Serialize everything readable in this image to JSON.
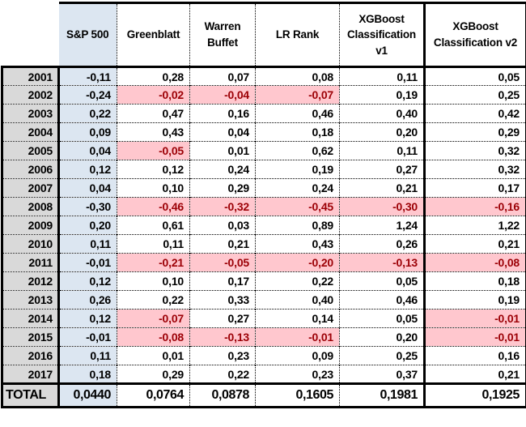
{
  "table": {
    "columns": [
      {
        "label": ""
      },
      {
        "label": "S&P 500"
      },
      {
        "label": "Greenblatt"
      },
      {
        "label": "Warren Buffet"
      },
      {
        "label": "LR Rank"
      },
      {
        "label": "XGBoost Classification v1"
      },
      {
        "label": "XGBoost Classification v2"
      }
    ],
    "rows": [
      {
        "year": "2001",
        "values": [
          "-0,11",
          "0,28",
          "0,07",
          "0,08",
          "0,11",
          "0,05"
        ]
      },
      {
        "year": "2002",
        "values": [
          "-0,24",
          "-0,02",
          "-0,04",
          "-0,07",
          "0,19",
          "0,25"
        ]
      },
      {
        "year": "2003",
        "values": [
          "0,22",
          "0,47",
          "0,16",
          "0,46",
          "0,40",
          "0,42"
        ]
      },
      {
        "year": "2004",
        "values": [
          "0,09",
          "0,43",
          "0,04",
          "0,18",
          "0,20",
          "0,29"
        ]
      },
      {
        "year": "2005",
        "values": [
          "0,04",
          "-0,05",
          "0,01",
          "0,62",
          "0,11",
          "0,32"
        ]
      },
      {
        "year": "2006",
        "values": [
          "0,12",
          "0,12",
          "0,24",
          "0,19",
          "0,27",
          "0,32"
        ]
      },
      {
        "year": "2007",
        "values": [
          "0,04",
          "0,10",
          "0,29",
          "0,24",
          "0,21",
          "0,17"
        ]
      },
      {
        "year": "2008",
        "values": [
          "-0,30",
          "-0,46",
          "-0,32",
          "-0,45",
          "-0,30",
          "-0,16"
        ]
      },
      {
        "year": "2009",
        "values": [
          "0,20",
          "0,61",
          "0,03",
          "0,89",
          "1,24",
          "1,22"
        ]
      },
      {
        "year": "2010",
        "values": [
          "0,11",
          "0,11",
          "0,21",
          "0,43",
          "0,26",
          "0,21"
        ]
      },
      {
        "year": "2011",
        "values": [
          "-0,01",
          "-0,21",
          "-0,05",
          "-0,20",
          "-0,13",
          "-0,08"
        ]
      },
      {
        "year": "2012",
        "values": [
          "0,12",
          "0,10",
          "0,17",
          "0,22",
          "0,05",
          "0,18"
        ]
      },
      {
        "year": "2013",
        "values": [
          "0,26",
          "0,22",
          "0,33",
          "0,40",
          "0,46",
          "0,19"
        ]
      },
      {
        "year": "2014",
        "values": [
          "0,12",
          "-0,07",
          "0,27",
          "0,14",
          "0,05",
          "-0,01"
        ]
      },
      {
        "year": "2015",
        "values": [
          "-0,01",
          "-0,08",
          "-0,13",
          "-0,01",
          "0,20",
          "-0,01"
        ]
      },
      {
        "year": "2016",
        "values": [
          "0,11",
          "0,01",
          "0,23",
          "0,09",
          "0,25",
          "0,16"
        ]
      },
      {
        "year": "2017",
        "values": [
          "0,18",
          "0,29",
          "0,22",
          "0,23",
          "0,37",
          "0,21"
        ]
      }
    ],
    "total": {
      "label": "TOTAL",
      "values": [
        "0,0440",
        "0,0764",
        "0,0878",
        "0,1605",
        "0,1981",
        "0,1925"
      ]
    }
  },
  "colors": {
    "year_column_gray": "#d9d9d9",
    "sp500_column_blue": "#dce6f1",
    "negative_highlight_bg": "#ffc7ce",
    "negative_highlight_text": "#9c0006",
    "border_black": "#000000"
  },
  "chart_data": {
    "type": "table",
    "title": "Yearly returns by strategy, 2001-2017, with cumulative TOTAL",
    "categories": [
      "2001",
      "2002",
      "2003",
      "2004",
      "2005",
      "2006",
      "2007",
      "2008",
      "2009",
      "2010",
      "2011",
      "2012",
      "2013",
      "2014",
      "2015",
      "2016",
      "2017"
    ],
    "series": [
      {
        "name": "S&P 500",
        "values": [
          -0.11,
          -0.24,
          0.22,
          0.09,
          0.04,
          0.12,
          0.04,
          -0.3,
          0.2,
          0.11,
          -0.01,
          0.12,
          0.26,
          0.12,
          -0.01,
          0.11,
          0.18
        ],
        "total": 0.044
      },
      {
        "name": "Greenblatt",
        "values": [
          0.28,
          -0.02,
          0.47,
          0.43,
          -0.05,
          0.12,
          0.1,
          -0.46,
          0.61,
          0.11,
          -0.21,
          0.1,
          0.22,
          -0.07,
          -0.08,
          0.01,
          0.29
        ],
        "total": 0.0764
      },
      {
        "name": "Warren Buffet",
        "values": [
          0.07,
          -0.04,
          0.16,
          0.04,
          0.01,
          0.24,
          0.29,
          -0.32,
          0.03,
          0.21,
          -0.05,
          0.17,
          0.33,
          0.27,
          -0.13,
          0.23,
          0.22
        ],
        "total": 0.0878
      },
      {
        "name": "LR Rank",
        "values": [
          0.08,
          -0.07,
          0.46,
          0.18,
          0.62,
          0.19,
          0.24,
          -0.45,
          0.89,
          0.43,
          -0.2,
          0.22,
          0.4,
          0.14,
          -0.01,
          0.09,
          0.23
        ],
        "total": 0.1605
      },
      {
        "name": "XGBoost Classification v1",
        "values": [
          0.11,
          0.19,
          0.4,
          0.2,
          0.11,
          0.27,
          0.21,
          -0.3,
          1.24,
          0.26,
          -0.13,
          0.05,
          0.46,
          0.05,
          0.2,
          0.25,
          0.37
        ],
        "total": 0.1981
      },
      {
        "name": "XGBoost Classification v2",
        "values": [
          0.05,
          0.25,
          0.42,
          0.29,
          0.32,
          0.32,
          0.17,
          -0.16,
          1.22,
          0.21,
          -0.08,
          0.18,
          0.19,
          -0.01,
          -0.01,
          0.16,
          0.21
        ],
        "total": 0.1925
      }
    ],
    "layout_hints": {
      "decimal_separator": "comma",
      "negative_cells_highlighted_pink_except_sp500": true,
      "grid": "dotted-inner, thick-solid-outer"
    }
  }
}
